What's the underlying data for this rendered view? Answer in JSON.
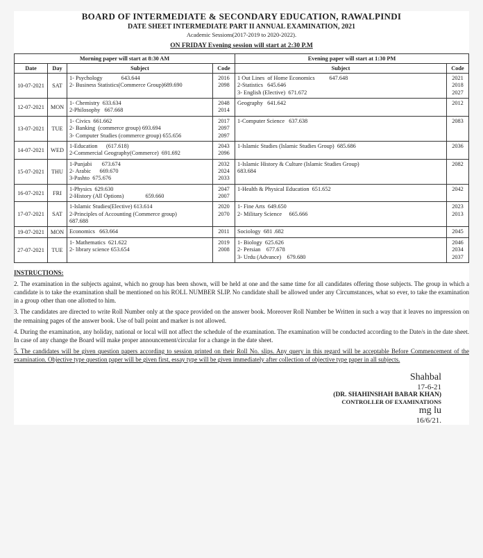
{
  "header": {
    "title": "BOARD OF INTERMEDIATE & SECONDARY EDUCATION, RAWALPINDI",
    "subtitle": "DATE SHEET INTERMEDIATE PART II ANNUAL EXAMINATION, 2021",
    "sessions": "Academic Sessions(2017-2019 to 2020-2022).",
    "friday_note": "ON FRIDAY Evening session will start at 2:30 P.M"
  },
  "table": {
    "morning_header": "Morning paper will start at 8:30 AM",
    "evening_header": "Evening paper will start at 1:30 PM",
    "col_date": "Date",
    "col_day": "Day",
    "col_subject": "Subject",
    "col_code": "Code",
    "rows": [
      {
        "date": "10-07-2021",
        "day": "SAT",
        "m_lines": [
          "1- Psychology             643.644",
          "2- Business Statistics(Commerce Group)689.690"
        ],
        "m_codes": [
          "2016",
          "2098"
        ],
        "e_lines": [
          "1 Out Lines  of Home Economics          647.648",
          "2-Statistics   645.646",
          "3- English (Elective)  671.672"
        ],
        "e_codes": [
          "2021",
          "2018",
          "2027"
        ]
      },
      {
        "date": "12-07-2021",
        "day": "MON",
        "m_lines": [
          "1- Chemistry  633.634",
          "2-Philosophy   667.668"
        ],
        "m_codes": [
          "2048",
          "2014"
        ],
        "e_lines": [
          "Geography   641.642"
        ],
        "e_codes": [
          "2012"
        ]
      },
      {
        "date": "13-07-2021",
        "day": "TUE",
        "m_lines": [
          "1- Civics  661.662",
          "2- Banking  (commerce group) 693.694",
          "3- Computer Studies (commerce group) 655.656"
        ],
        "m_codes": [
          "2017",
          "2097",
          "2097"
        ],
        "e_lines": [
          "1-Computer Science   637.638"
        ],
        "e_codes": [
          "2083"
        ]
      },
      {
        "date": "14-07-2021",
        "day": "WED",
        "m_lines": [
          "1-Education      (617.618)",
          "2-Commercial Geography(Commerce)  691.692"
        ],
        "m_codes": [
          "2043",
          "2096"
        ],
        "e_lines": [
          "1-Islamic Studies (Islamic Studies Group)  685.686"
        ],
        "e_codes": [
          "2036"
        ]
      },
      {
        "date": "15-07-2021",
        "day": "THU",
        "m_lines": [
          "1-Punjabi       673.674",
          "2- Arabic      669.670",
          "3-Pashto  675.676"
        ],
        "m_codes": [
          "2032",
          "2024",
          "2033"
        ],
        "e_lines": [
          "1-Islamic History & Culture (Islamic Studies Group)",
          "683.684"
        ],
        "e_codes": [
          "2082"
        ]
      },
      {
        "date": "16-07-2021",
        "day": "FRI",
        "m_lines": [
          "1-Physics  629.630",
          "2-History (All Options)               659.660"
        ],
        "m_codes": [
          "2047",
          "2007"
        ],
        "e_lines": [
          "1-Health & Physical Education  651.652"
        ],
        "e_codes": [
          "2042"
        ]
      },
      {
        "date": "17-07-2021",
        "day": "SAT",
        "m_lines": [
          "1-Islamic Studies(Elective) 613.614",
          "2-Principles of Accounting (Commerce group)",
          "687.688"
        ],
        "m_codes": [
          "2020",
          "2070"
        ],
        "e_lines": [
          "1- Fine Arts  649.650",
          "2- Military Science     665.666"
        ],
        "e_codes": [
          "2023",
          "2013"
        ]
      },
      {
        "date": "19-07-2021",
        "day": "MON",
        "m_lines": [
          "Economics   663.664"
        ],
        "m_codes": [
          "2011"
        ],
        "e_lines": [
          "Sociology  681 .682"
        ],
        "e_codes": [
          "2045"
        ]
      },
      {
        "date": "27-07-2021",
        "day": "TUE",
        "m_lines": [
          "1- Mathematics  621.622",
          "2- library science 653.654"
        ],
        "m_codes": [
          "2019",
          "2008"
        ],
        "e_lines": [
          "1- Biology  625.626",
          "2- Persian    677.678",
          "3- Urdu (Advance)    679.680"
        ],
        "e_codes": [
          "2046",
          "2034",
          "2037"
        ]
      }
    ]
  },
  "instructions": {
    "heading": "INSTRUCTIONS:",
    "p2": "2.  The examination in the subjects against, which no group has been shown, will be held at one and the same time for all candidates offering those subjects. The group in which a candidate is to take the examination shall be mentioned on his ROLL NUMBER SLIP. No candidate shall be allowed under any Circumstances, what so ever, to take the examination in a group other than one allotted to him.",
    "p3": "3.  The candidates are directed to write Roll Number only at the space provided on the answer book. Moreover Roll Number be Written in such a way that it leaves no impression on the remaining pages of the answer book.  Use of ball point and marker is not allowed.",
    "p4": "4.  During the examination, any holiday, national or local will not affect the schedule of the examination.  The examination will be conducted according to the Date/s in the date sheet.  In case of any change the Board will make proper announcement/circular for a change in the date sheet.",
    "p5": "5.  The candidates will be given question papers according to session printed on their Roll No. slips.  Any query in this regard will be acceptable Before Commencement of the examination. Objective type question paper will be given first, essay type will be given immediately after collection of objective type paper in all subjects."
  },
  "signature": {
    "scribble": "Shahbal",
    "sig_date1": "17-6-21",
    "name": "(DR. SHAHINSHAH BABAR KHAN)",
    "role": "CONTROLLER OF EXAMINATIONS",
    "scribble2": "mg  lu",
    "sig_date2": "16/6/21."
  }
}
